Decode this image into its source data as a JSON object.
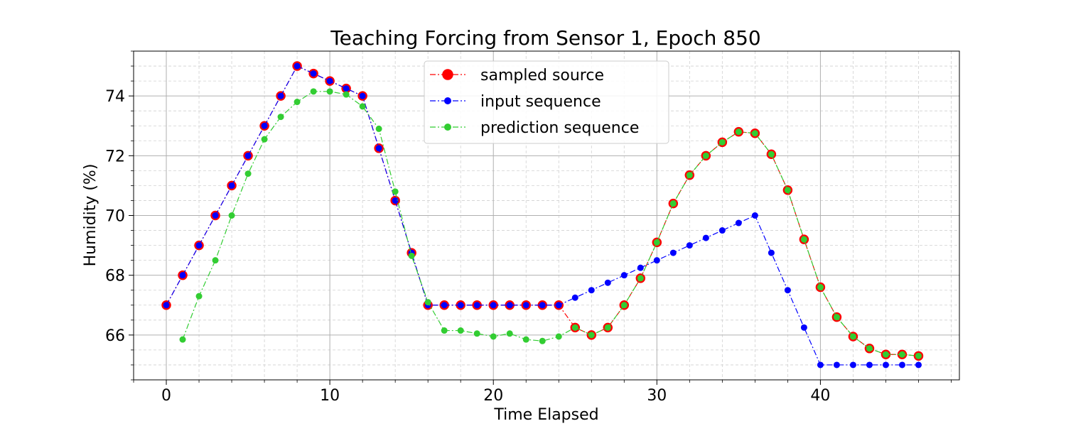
{
  "chart_data": {
    "type": "line",
    "title": "Teaching Forcing from Sensor 1, Epoch 850",
    "xlabel": "Time Elapsed",
    "ylabel": "Humidity (%)",
    "xlim": [
      -2,
      48.5
    ],
    "ylim": [
      64.5,
      75.5
    ],
    "xticks": [
      0,
      10,
      20,
      30,
      40
    ],
    "yticks": [
      66,
      68,
      70,
      72,
      74
    ],
    "grid": true,
    "legend_position": "top-center",
    "series": [
      {
        "name": "sampled source",
        "color": "#ff0000",
        "face_color": "#ff0000",
        "marker": "large-circle",
        "x": [
          0,
          1,
          2,
          3,
          4,
          5,
          6,
          7,
          8,
          9,
          10,
          11,
          12,
          13,
          14,
          15,
          16,
          17,
          18,
          19,
          20,
          21,
          22,
          23,
          24,
          25,
          26,
          27,
          28,
          29,
          30,
          31,
          32,
          33,
          34,
          35,
          36,
          37,
          38,
          39,
          40,
          41,
          42,
          43,
          44,
          45,
          46
        ],
        "values": [
          67,
          68,
          69,
          70,
          71,
          72,
          73,
          74,
          75,
          74.75,
          74.5,
          74.25,
          74,
          72.25,
          70.5,
          68.75,
          67,
          67,
          67,
          67,
          67,
          67,
          67,
          67,
          67,
          66.25,
          66,
          66.25,
          67,
          67.9,
          69.1,
          70.4,
          71.35,
          72,
          72.45,
          72.8,
          72.75,
          72.05,
          70.85,
          69.2,
          67.6,
          66.6,
          65.95,
          65.55,
          65.35,
          65.35,
          65.3
        ]
      },
      {
        "name": "input sequence",
        "color": "#0000ff",
        "face_color": "#0000ff",
        "marker": "small-circle",
        "x": [
          0,
          1,
          2,
          3,
          4,
          5,
          6,
          7,
          8,
          9,
          10,
          11,
          12,
          13,
          14,
          15,
          16,
          17,
          18,
          19,
          20,
          21,
          22,
          23,
          24,
          25,
          26,
          27,
          28,
          29,
          30,
          31,
          32,
          33,
          34,
          35,
          36,
          37,
          38,
          39,
          40,
          41,
          42,
          43,
          44,
          45,
          46
        ],
        "values": [
          67,
          68,
          69,
          70,
          71,
          72,
          73,
          74,
          75,
          74.75,
          74.5,
          74.25,
          74,
          72.25,
          70.5,
          68.75,
          67,
          67,
          67,
          67,
          67,
          67,
          67,
          67,
          67,
          67.25,
          67.5,
          67.75,
          68,
          68.25,
          68.5,
          68.75,
          69,
          69.25,
          69.5,
          69.75,
          70,
          68.75,
          67.5,
          66.25,
          65,
          65,
          65,
          65,
          65,
          65,
          65
        ]
      },
      {
        "name": "prediction sequence",
        "color": "#32cd32",
        "face_color": "#32cd32",
        "marker": "small-circle",
        "x": [
          1,
          2,
          3,
          4,
          5,
          6,
          7,
          8,
          9,
          10,
          11,
          12,
          13,
          14,
          15,
          16,
          17,
          18,
          19,
          20,
          21,
          22,
          23,
          24,
          25,
          26,
          27,
          28,
          29,
          30,
          31,
          32,
          33,
          34,
          35,
          36,
          37,
          38,
          39,
          40,
          41,
          42,
          43,
          44,
          45,
          46
        ],
        "values": [
          65.85,
          67.3,
          68.5,
          70,
          71.4,
          72.55,
          73.3,
          73.8,
          74.15,
          74.15,
          74.05,
          73.65,
          72.9,
          70.8,
          68.65,
          67.1,
          66.15,
          66.15,
          66.05,
          65.95,
          66.05,
          65.85,
          65.8,
          65.95,
          66.25,
          66,
          66.25,
          67,
          67.9,
          69.1,
          70.4,
          71.35,
          72,
          72.45,
          72.8,
          72.75,
          72.05,
          70.85,
          69.2,
          67.6,
          66.6,
          65.95,
          65.55,
          65.35,
          65.35,
          65.3
        ]
      }
    ]
  }
}
